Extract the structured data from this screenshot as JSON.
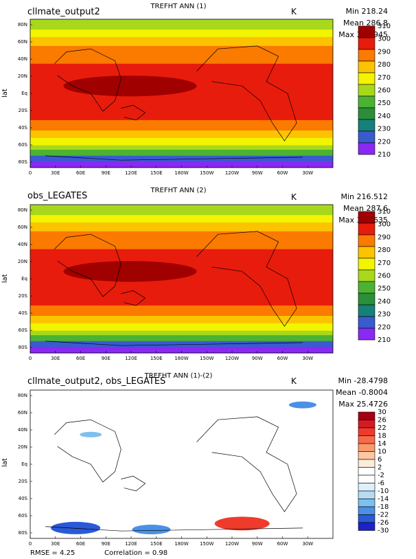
{
  "panels": [
    {
      "title": "cllmate_output2",
      "center_title": "TREFHT ANN (1)",
      "units": "K",
      "stats": {
        "min": "Min 218.24",
        "mean": "Mean 286.8",
        "max": "Max 301.945"
      },
      "ylabel": "lat",
      "colorbar": {
        "levels": [
          "310",
          "300",
          "290",
          "280",
          "270",
          "260",
          "250",
          "240",
          "230",
          "220",
          "210"
        ],
        "colors": [
          "#a00000",
          "#e81c0c",
          "#fb7a00",
          "#fcc300",
          "#f2f400",
          "#a8d81c",
          "#4cb332",
          "#2a8f38",
          "#16807a",
          "#3a5ad0",
          "#8a28f4"
        ]
      }
    },
    {
      "title": "obs_LEGATES",
      "center_title": "TREFHT ANN (2)",
      "units": "K",
      "stats": {
        "min": "Min 216.512",
        "mean": "Mean 287.6",
        "max": "Max 302.635"
      },
      "ylabel": "lat",
      "colorbar": {
        "levels": [
          "310",
          "300",
          "290",
          "280",
          "270",
          "260",
          "250",
          "240",
          "230",
          "220",
          "210"
        ],
        "colors": [
          "#a00000",
          "#e81c0c",
          "#fb7a00",
          "#fcc300",
          "#f2f400",
          "#a8d81c",
          "#4cb332",
          "#2a8f38",
          "#16807a",
          "#3a5ad0",
          "#8a28f4"
        ]
      }
    },
    {
      "title": "cllmate_output2, obs_LEGATES",
      "center_title": "TREFHT ANN (1)-(2)",
      "units": "K",
      "stats": {
        "min": "Min -28.4798",
        "mean": "Mean -0.8004",
        "max": "Max 25.4726"
      },
      "ylabel": "lat",
      "colorbar": {
        "levels": [
          "30",
          "26",
          "22",
          "18",
          "14",
          "10",
          "6",
          "2",
          "-2",
          "-6",
          "-10",
          "-14",
          "-18",
          "-22",
          "-26",
          "-30"
        ],
        "colors": [
          "#a50014",
          "#d61a24",
          "#ef3b2c",
          "#f86a4a",
          "#fb9a6a",
          "#fcc8a0",
          "#fdecd8",
          "#ffffff",
          "#ffffff",
          "#def0fa",
          "#b5dcf5",
          "#7ec0ef",
          "#4a90e6",
          "#2a5ad8",
          "#1c22c8"
        ]
      }
    }
  ],
  "lat_ticks": [
    "80N",
    "60N",
    "40N",
    "20N",
    "Eq",
    "20S",
    "40S",
    "60S",
    "80S"
  ],
  "lon_ticks": [
    "0",
    "30E",
    "60E",
    "90E",
    "120E",
    "150E",
    "180W",
    "150W",
    "120W",
    "90W",
    "60W",
    "30W"
  ],
  "footer": {
    "rmse": "RMSE = 4.25",
    "correlation": "Correlation = 0.98"
  }
}
